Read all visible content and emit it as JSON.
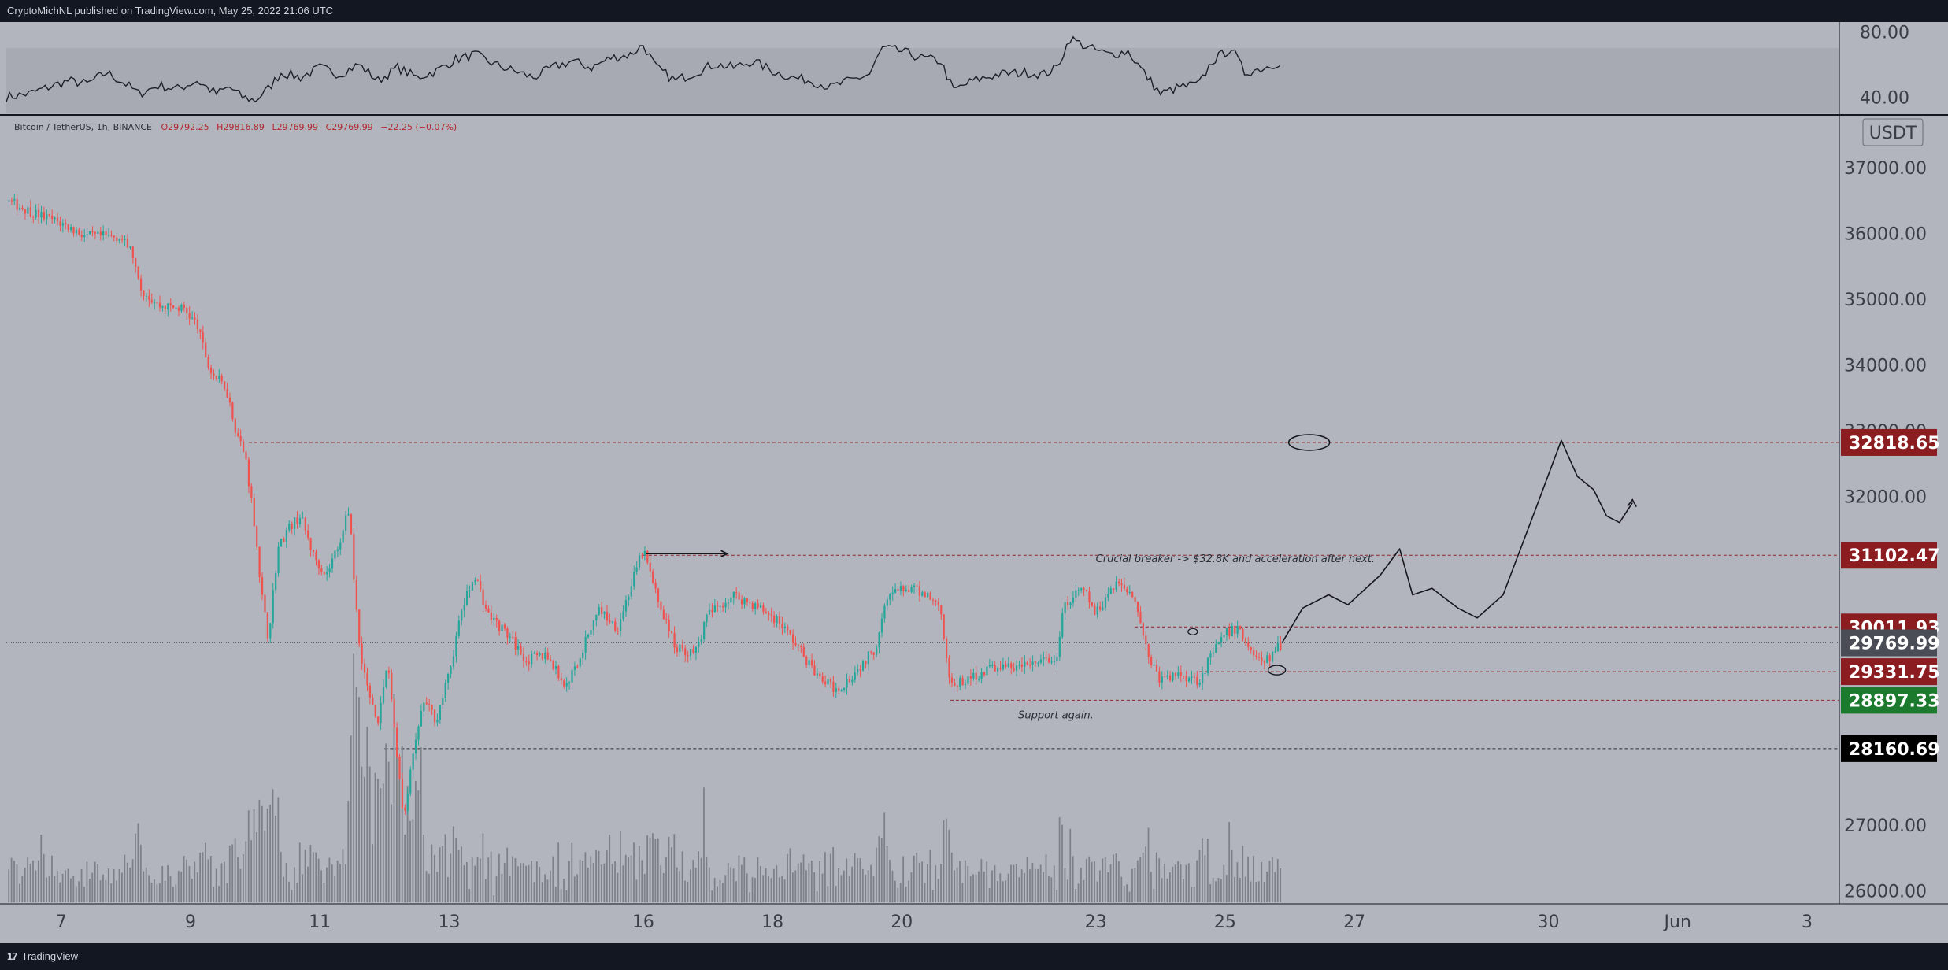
{
  "header": {
    "publisher": "CryptoMichNL published on TradingView.com, May 25, 2022 21:06 UTC"
  },
  "footer": {
    "brand": "TradingView",
    "logo_glyph": "17"
  },
  "colors": {
    "background": "#b2b5be",
    "panel_band": "#a7aab2",
    "frame": "#131722",
    "up": "#26a69a",
    "down": "#ef5350",
    "badge_red": "#8b1c1f",
    "badge_green": "#1b7a2e",
    "badge_black": "#000000",
    "badge_gray": "#4a4d56"
  },
  "chart_data": {
    "type": "candlestick",
    "symbol_legend": {
      "name": "Bitcoin / TetherUS, 1h, BINANCE",
      "open": "O29792.25",
      "high": "H29816.89",
      "low": "L29769.99",
      "close": "C29769.99",
      "change": "−22.25 (−0.07%)"
    },
    "currency": "USDT",
    "ylim": [
      25800,
      37800
    ],
    "y_ticks": [
      "37000.00",
      "36000.00",
      "35000.00",
      "34000.00",
      "33000.00",
      "32000.00",
      "27000.00",
      "26000.00"
    ],
    "y_tick_values": [
      37000,
      36000,
      35000,
      34000,
      33000,
      32000,
      27000,
      26000
    ],
    "x_ticks": [
      "7",
      "9",
      "11",
      "13",
      "16",
      "18",
      "20",
      "23",
      "25",
      "27",
      "30",
      "Jun",
      "3"
    ],
    "x_tick_days": [
      7,
      9,
      11,
      13,
      16,
      18,
      20,
      23,
      25,
      27,
      30,
      32,
      34
    ],
    "xlim_days": [
      6.15,
      34.5
    ],
    "last_bar_day": 25.88,
    "price_path": [
      [
        6.15,
        36500
      ],
      [
        6.6,
        36300
      ],
      [
        7.0,
        36150
      ],
      [
        7.4,
        35950
      ],
      [
        7.9,
        35950
      ],
      [
        8.1,
        35700
      ],
      [
        8.2,
        35200
      ],
      [
        8.5,
        34900
      ],
      [
        8.9,
        34850
      ],
      [
        9.1,
        34600
      ],
      [
        9.3,
        33900
      ],
      [
        9.55,
        33650
      ],
      [
        9.7,
        33000
      ],
      [
        9.85,
        32600
      ],
      [
        10.0,
        31500
      ],
      [
        10.1,
        30500
      ],
      [
        10.2,
        29850
      ],
      [
        10.35,
        31200
      ],
      [
        10.5,
        31500
      ],
      [
        10.7,
        31700
      ],
      [
        10.9,
        31100
      ],
      [
        11.1,
        30800
      ],
      [
        11.3,
        31300
      ],
      [
        11.45,
        31800
      ],
      [
        11.6,
        29800
      ],
      [
        11.75,
        29000
      ],
      [
        11.9,
        28600
      ],
      [
        12.05,
        29500
      ],
      [
        12.2,
        28000
      ],
      [
        12.3,
        27100
      ],
      [
        12.45,
        28100
      ],
      [
        12.6,
        28900
      ],
      [
        12.8,
        28600
      ],
      [
        13.0,
        29300
      ],
      [
        13.2,
        30300
      ],
      [
        13.4,
        30800
      ],
      [
        13.6,
        30200
      ],
      [
        13.9,
        29900
      ],
      [
        14.2,
        29500
      ],
      [
        14.5,
        29600
      ],
      [
        14.8,
        29100
      ],
      [
        15.0,
        29500
      ],
      [
        15.3,
        30300
      ],
      [
        15.6,
        30000
      ],
      [
        15.8,
        30600
      ],
      [
        16.0,
        31200
      ],
      [
        16.2,
        30500
      ],
      [
        16.5,
        29700
      ],
      [
        16.8,
        29600
      ],
      [
        17.0,
        30200
      ],
      [
        17.4,
        30500
      ],
      [
        17.8,
        30300
      ],
      [
        18.1,
        30100
      ],
      [
        18.4,
        29700
      ],
      [
        18.7,
        29250
      ],
      [
        19.0,
        29050
      ],
      [
        19.3,
        29350
      ],
      [
        19.6,
        29700
      ],
      [
        19.75,
        30500
      ],
      [
        20.1,
        30600
      ],
      [
        20.4,
        30500
      ],
      [
        20.6,
        30300
      ],
      [
        20.75,
        29100
      ],
      [
        21.0,
        29200
      ],
      [
        21.4,
        29400
      ],
      [
        21.8,
        29400
      ],
      [
        22.2,
        29500
      ],
      [
        22.4,
        29500
      ],
      [
        22.5,
        30300
      ],
      [
        22.8,
        30600
      ],
      [
        23.0,
        30200
      ],
      [
        23.3,
        30700
      ],
      [
        23.6,
        30500
      ],
      [
        23.8,
        29600
      ],
      [
        24.0,
        29200
      ],
      [
        24.3,
        29300
      ],
      [
        24.6,
        29200
      ],
      [
        24.8,
        29600
      ],
      [
        25.0,
        29900
      ],
      [
        25.2,
        30000
      ],
      [
        25.4,
        29650
      ],
      [
        25.6,
        29450
      ],
      [
        25.88,
        29770
      ]
    ],
    "levels": [
      {
        "label": "32818.65",
        "value": 32818.65,
        "color": "badge_red",
        "from_day": 9.9
      },
      {
        "label": "31102.47",
        "value": 31102.47,
        "color": "badge_red",
        "from_day": 16.0
      },
      {
        "label": "30011.93",
        "value": 30011.93,
        "color": "badge_red",
        "from_day": 23.6
      },
      {
        "label": "29769.99",
        "value": 29769.99,
        "color": "badge_gray",
        "from_day": 6.15
      },
      {
        "label": "29331.75",
        "value": 29331.75,
        "color": "badge_red",
        "from_day": 24.6
      },
      {
        "label": "28897.33",
        "value": 28897.33,
        "color": "badge_green",
        "from_day": 20.75
      },
      {
        "label": "28160.69",
        "value": 28160.69,
        "color": "badge_black",
        "from_day": 12.0
      }
    ],
    "projection": [
      [
        25.88,
        29770
      ],
      [
        26.2,
        30300
      ],
      [
        26.6,
        30500
      ],
      [
        26.9,
        30350
      ],
      [
        27.4,
        30800
      ],
      [
        27.7,
        31200
      ],
      [
        27.9,
        30500
      ],
      [
        28.2,
        30600
      ],
      [
        28.6,
        30300
      ],
      [
        28.9,
        30150
      ],
      [
        29.3,
        30500
      ],
      [
        29.8,
        31800
      ],
      [
        30.2,
        32850
      ],
      [
        30.45,
        32300
      ],
      [
        30.7,
        32100
      ],
      [
        30.9,
        31700
      ],
      [
        31.1,
        31600
      ],
      [
        31.3,
        31900
      ]
    ],
    "annotations": [
      {
        "text": "Crucial breaker -> $32.8K and acceleration after next.",
        "day": 23.0,
        "value": 31000
      },
      {
        "text": "Support again.",
        "day": 21.8,
        "value": 28620
      }
    ],
    "rsi": {
      "y_ticks": [
        "80.00",
        "40.00"
      ],
      "y_tick_values": [
        80,
        40
      ],
      "ylim": [
        30,
        85
      ],
      "band": [
        30,
        70
      ],
      "path": [
        [
          6.15,
          40
        ],
        [
          6.5,
          42
        ],
        [
          6.8,
          46
        ],
        [
          7.1,
          50
        ],
        [
          7.4,
          48
        ],
        [
          7.7,
          55
        ],
        [
          8.0,
          48
        ],
        [
          8.2,
          42
        ],
        [
          8.5,
          47
        ],
        [
          8.8,
          45
        ],
        [
          9.1,
          50
        ],
        [
          9.4,
          42
        ],
        [
          9.6,
          46
        ],
        [
          9.8,
          40
        ],
        [
          10.0,
          38
        ],
        [
          10.2,
          45
        ],
        [
          10.4,
          55
        ],
        [
          10.7,
          52
        ],
        [
          11.0,
          58
        ],
        [
          11.3,
          54
        ],
        [
          11.6,
          60
        ],
        [
          11.9,
          50
        ],
        [
          12.2,
          58
        ],
        [
          12.5,
          52
        ],
        [
          12.8,
          56
        ],
        [
          13.1,
          63
        ],
        [
          13.4,
          66
        ],
        [
          13.7,
          60
        ],
        [
          14.0,
          56
        ],
        [
          14.3,
          52
        ],
        [
          14.6,
          58
        ],
        [
          14.9,
          62
        ],
        [
          15.2,
          58
        ],
        [
          15.5,
          64
        ],
        [
          15.8,
          66
        ],
        [
          16.0,
          72
        ],
        [
          16.2,
          58
        ],
        [
          16.5,
          50
        ],
        [
          16.8,
          55
        ],
        [
          17.1,
          60
        ],
        [
          17.4,
          58
        ],
        [
          17.7,
          62
        ],
        [
          18.0,
          56
        ],
        [
          18.3,
          52
        ],
        [
          18.6,
          50
        ],
        [
          18.9,
          46
        ],
        [
          19.2,
          50
        ],
        [
          19.5,
          54
        ],
        [
          19.7,
          70
        ],
        [
          20.0,
          68
        ],
        [
          20.3,
          64
        ],
        [
          20.6,
          62
        ],
        [
          20.8,
          44
        ],
        [
          21.1,
          50
        ],
        [
          21.5,
          54
        ],
        [
          21.9,
          55
        ],
        [
          22.2,
          54
        ],
        [
          22.4,
          58
        ],
        [
          22.6,
          76
        ],
        [
          22.9,
          70
        ],
        [
          23.2,
          66
        ],
        [
          23.5,
          68
        ],
        [
          23.8,
          52
        ],
        [
          24.0,
          42
        ],
        [
          24.3,
          46
        ],
        [
          24.6,
          48
        ],
        [
          24.8,
          62
        ],
        [
          25.1,
          70
        ],
        [
          25.3,
          55
        ],
        [
          25.6,
          58
        ],
        [
          25.88,
          62
        ]
      ]
    }
  }
}
